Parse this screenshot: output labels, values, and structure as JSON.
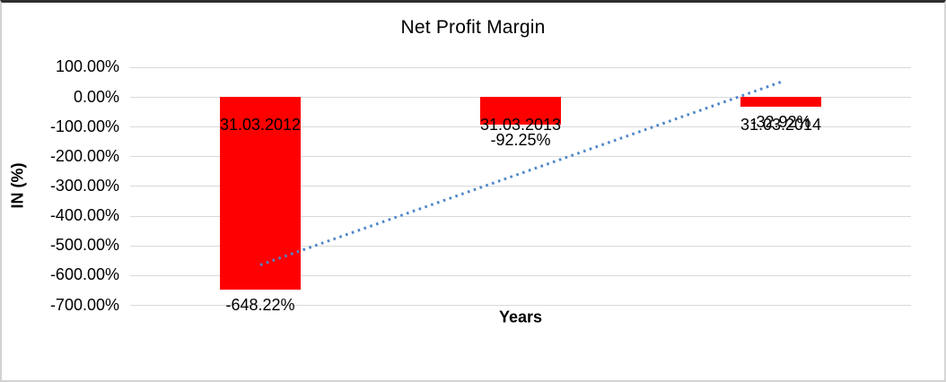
{
  "chart_data": {
    "type": "bar",
    "title": "Net Profit Margin",
    "xlabel": "Years",
    "ylabel": "IN (%)",
    "categories": [
      "31.03.2012",
      "31.03.2013",
      "31.03.2014"
    ],
    "values": [
      -648.22,
      -92.25,
      -32.92
    ],
    "value_labels": [
      "-648.22%",
      "-92.25%",
      "-32.92%"
    ],
    "bar_color": "#FF0000",
    "ylim": [
      -700,
      100
    ],
    "ytick_step": 100,
    "yticks": [
      100,
      0,
      -100,
      -200,
      -300,
      -400,
      -500,
      -600,
      -700
    ],
    "ytick_labels": [
      "100.00%",
      "0.00%",
      "-100.00%",
      "-200.00%",
      "-300.00%",
      "-400.00%",
      "-500.00%",
      "-600.00%",
      "-700.00%"
    ],
    "grid": true,
    "gridline_color": "#D9D9D9",
    "legend": "none",
    "trendline": {
      "type": "linear",
      "style": "dotted",
      "color": "#4E87C8",
      "start_pct": -565.4,
      "end_pct": 49.9
    }
  }
}
